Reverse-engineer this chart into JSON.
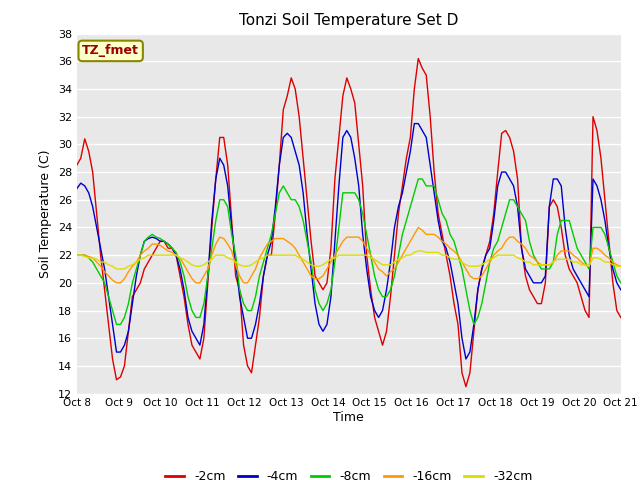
{
  "title": "Tonzi Soil Temperature Set D",
  "xlabel": "Time",
  "ylabel": "Soil Temperature (C)",
  "ylim": [
    12,
    38
  ],
  "yticks": [
    12,
    14,
    16,
    18,
    20,
    22,
    24,
    26,
    28,
    30,
    32,
    34,
    36,
    38
  ],
  "x_labels": [
    "Oct 8",
    "Oct 9",
    "Oct 10",
    "Oct 11",
    "Oct 12",
    "Oct 13",
    "Oct 14",
    "Oct 15",
    "Oct 16",
    "Oct 17",
    "Oct 18",
    "Oct 19",
    "Oct 20",
    "Oct 21"
  ],
  "legend_label": "TZ_fmet",
  "legend_box_color": "#ffffcc",
  "legend_box_edge": "#888800",
  "legend_text_color": "#990000",
  "series_labels": [
    "-2cm",
    "-4cm",
    "-8cm",
    "-16cm",
    "-32cm"
  ],
  "series_colors": [
    "#dd0000",
    "#0000cc",
    "#00cc00",
    "#ff9900",
    "#dddd00"
  ],
  "background_color": "#ffffff",
  "plot_bg_color": "#e8e8e8",
  "grid_color": "#ffffff",
  "series_2cm": [
    28.5,
    29.0,
    30.4,
    29.5,
    28.0,
    25.0,
    22.0,
    19.5,
    17.0,
    14.5,
    13.0,
    13.2,
    14.0,
    16.5,
    19.0,
    19.5,
    20.0,
    21.0,
    21.5,
    22.0,
    22.5,
    23.0,
    23.0,
    22.5,
    22.5,
    22.0,
    20.5,
    19.0,
    17.0,
    15.5,
    15.0,
    14.5,
    16.0,
    20.0,
    24.0,
    27.5,
    30.5,
    30.5,
    28.5,
    24.5,
    20.5,
    19.5,
    15.5,
    14.0,
    13.5,
    15.5,
    17.5,
    20.5,
    22.0,
    22.0,
    25.0,
    28.5,
    32.5,
    33.5,
    34.8,
    34.0,
    32.0,
    29.0,
    26.0,
    23.0,
    20.5,
    20.0,
    19.5,
    20.0,
    22.5,
    27.5,
    30.5,
    33.5,
    34.8,
    34.0,
    33.0,
    30.0,
    27.0,
    22.0,
    19.5,
    17.5,
    16.5,
    15.5,
    16.5,
    19.0,
    22.0,
    25.0,
    27.0,
    29.0,
    30.5,
    34.0,
    36.2,
    35.5,
    35.0,
    32.0,
    28.0,
    25.0,
    23.5,
    22.0,
    20.5,
    18.5,
    17.0,
    13.5,
    12.5,
    13.5,
    16.5,
    19.5,
    21.0,
    22.0,
    23.0,
    25.0,
    28.0,
    30.8,
    31.0,
    30.5,
    29.5,
    27.5,
    22.5,
    20.5,
    19.5,
    19.0,
    18.5,
    18.5,
    20.0,
    25.5,
    26.0,
    25.5,
    24.0,
    22.0,
    21.0,
    20.5,
    20.0,
    19.0,
    18.0,
    17.5,
    32.0,
    31.0,
    29.0,
    26.0,
    23.0,
    20.0,
    18.0,
    17.5
  ],
  "series_4cm": [
    26.8,
    27.2,
    27.0,
    26.5,
    25.5,
    24.0,
    22.5,
    21.0,
    19.0,
    17.0,
    15.0,
    15.0,
    15.5,
    16.5,
    18.5,
    20.5,
    22.0,
    23.0,
    23.2,
    23.3,
    23.2,
    23.0,
    23.0,
    22.8,
    22.5,
    22.0,
    21.0,
    19.5,
    17.5,
    16.5,
    16.0,
    15.5,
    17.0,
    20.5,
    24.5,
    27.5,
    29.0,
    28.5,
    27.0,
    24.0,
    21.5,
    19.0,
    17.5,
    16.0,
    16.0,
    17.0,
    18.5,
    20.5,
    22.0,
    23.0,
    25.5,
    28.5,
    30.5,
    30.8,
    30.5,
    29.5,
    28.5,
    26.5,
    23.5,
    21.0,
    18.5,
    17.0,
    16.5,
    17.0,
    19.0,
    23.0,
    27.0,
    30.5,
    31.0,
    30.5,
    29.0,
    27.0,
    23.5,
    21.0,
    19.0,
    18.0,
    17.5,
    18.0,
    19.5,
    21.5,
    24.0,
    25.5,
    26.5,
    28.0,
    29.5,
    31.5,
    31.5,
    31.0,
    30.5,
    28.5,
    26.5,
    24.5,
    23.0,
    22.5,
    21.5,
    20.0,
    18.5,
    16.0,
    14.5,
    15.0,
    17.0,
    19.5,
    21.0,
    22.0,
    22.5,
    24.5,
    27.0,
    28.0,
    28.0,
    27.5,
    27.0,
    25.5,
    22.5,
    21.0,
    20.5,
    20.0,
    20.0,
    20.0,
    20.5,
    25.5,
    27.5,
    27.5,
    27.0,
    24.0,
    22.0,
    21.0,
    20.5,
    20.0,
    19.5,
    19.0,
    27.5,
    27.0,
    26.0,
    24.5,
    22.5,
    21.0,
    20.0,
    19.5
  ],
  "series_8cm": [
    22.0,
    22.0,
    22.0,
    21.8,
    21.5,
    21.0,
    20.5,
    20.0,
    19.0,
    18.0,
    17.0,
    17.0,
    17.5,
    18.5,
    20.0,
    21.0,
    22.0,
    23.0,
    23.3,
    23.5,
    23.3,
    23.2,
    23.0,
    22.8,
    22.5,
    22.2,
    21.5,
    20.5,
    19.0,
    18.0,
    17.5,
    17.5,
    18.5,
    20.5,
    22.5,
    24.5,
    26.0,
    26.0,
    25.5,
    23.5,
    22.0,
    19.5,
    18.5,
    18.0,
    18.0,
    19.0,
    20.5,
    21.5,
    22.5,
    23.5,
    25.0,
    26.5,
    27.0,
    26.5,
    26.0,
    26.0,
    25.5,
    24.5,
    23.0,
    21.5,
    19.5,
    18.5,
    18.0,
    18.5,
    19.5,
    21.5,
    24.0,
    26.5,
    26.5,
    26.5,
    26.5,
    26.0,
    25.0,
    23.5,
    22.0,
    20.5,
    19.5,
    19.0,
    19.0,
    19.5,
    20.5,
    22.0,
    23.5,
    24.5,
    25.5,
    26.5,
    27.5,
    27.5,
    27.0,
    27.0,
    27.0,
    26.0,
    25.0,
    24.5,
    23.5,
    23.0,
    22.0,
    21.0,
    19.5,
    18.0,
    17.0,
    17.5,
    18.5,
    20.0,
    21.5,
    22.5,
    23.0,
    24.0,
    25.0,
    26.0,
    26.0,
    25.5,
    25.0,
    24.5,
    23.0,
    22.0,
    21.5,
    21.0,
    21.0,
    21.0,
    21.5,
    23.5,
    24.5,
    24.5,
    24.5,
    23.5,
    22.5,
    22.0,
    21.5,
    21.0,
    24.0,
    24.0,
    24.0,
    23.5,
    22.5,
    21.5,
    20.5,
    20.0
  ],
  "series_16cm": [
    22.0,
    22.0,
    22.0,
    21.9,
    21.8,
    21.5,
    21.2,
    20.8,
    20.5,
    20.2,
    20.0,
    20.0,
    20.3,
    20.8,
    21.2,
    21.5,
    22.0,
    22.3,
    22.5,
    22.8,
    22.8,
    22.7,
    22.5,
    22.3,
    22.2,
    22.0,
    21.8,
    21.3,
    20.8,
    20.3,
    20.0,
    20.0,
    20.5,
    21.0,
    22.0,
    22.8,
    23.3,
    23.2,
    22.8,
    22.3,
    21.3,
    20.5,
    20.0,
    20.0,
    20.5,
    21.0,
    21.8,
    22.3,
    22.8,
    23.0,
    23.2,
    23.2,
    23.2,
    23.0,
    22.8,
    22.5,
    22.0,
    21.5,
    21.0,
    20.5,
    20.3,
    20.3,
    20.5,
    21.0,
    21.5,
    22.0,
    22.5,
    23.0,
    23.3,
    23.3,
    23.3,
    23.3,
    23.0,
    22.5,
    22.0,
    21.5,
    21.0,
    20.8,
    20.5,
    20.8,
    21.0,
    21.5,
    22.0,
    22.5,
    23.0,
    23.5,
    24.0,
    23.8,
    23.5,
    23.5,
    23.5,
    23.3,
    23.0,
    22.8,
    22.5,
    22.3,
    22.0,
    21.5,
    21.0,
    20.5,
    20.3,
    20.3,
    20.5,
    21.0,
    21.5,
    22.0,
    22.3,
    22.5,
    23.0,
    23.3,
    23.3,
    23.0,
    22.8,
    22.5,
    22.0,
    21.8,
    21.5,
    21.3,
    21.3,
    21.3,
    21.5,
    22.0,
    22.3,
    22.3,
    22.3,
    22.0,
    21.8,
    21.5,
    21.3,
    21.2,
    22.5,
    22.5,
    22.3,
    22.0,
    21.8,
    21.5,
    21.3,
    21.2
  ],
  "series_32cm": [
    22.0,
    22.0,
    21.9,
    21.8,
    21.8,
    21.7,
    21.5,
    21.5,
    21.3,
    21.2,
    21.0,
    21.0,
    21.0,
    21.2,
    21.3,
    21.5,
    21.7,
    21.8,
    22.0,
    22.0,
    22.0,
    22.0,
    22.0,
    22.0,
    22.0,
    22.0,
    21.8,
    21.7,
    21.5,
    21.3,
    21.2,
    21.2,
    21.3,
    21.5,
    21.7,
    22.0,
    22.0,
    22.0,
    21.8,
    21.7,
    21.5,
    21.3,
    21.2,
    21.2,
    21.3,
    21.5,
    21.7,
    21.8,
    22.0,
    22.0,
    22.0,
    22.0,
    22.0,
    22.0,
    22.0,
    22.0,
    21.8,
    21.7,
    21.5,
    21.3,
    21.2,
    21.2,
    21.3,
    21.5,
    21.7,
    21.8,
    22.0,
    22.0,
    22.0,
    22.0,
    22.0,
    22.0,
    22.0,
    22.0,
    21.8,
    21.7,
    21.5,
    21.3,
    21.3,
    21.3,
    21.5,
    21.7,
    21.8,
    22.0,
    22.0,
    22.2,
    22.3,
    22.3,
    22.2,
    22.2,
    22.2,
    22.2,
    22.0,
    22.0,
    21.8,
    21.7,
    21.7,
    21.5,
    21.3,
    21.2,
    21.2,
    21.2,
    21.3,
    21.5,
    21.7,
    21.8,
    22.0,
    22.0,
    22.0,
    22.0,
    22.0,
    21.8,
    21.7,
    21.5,
    21.5,
    21.3,
    21.3,
    21.3,
    21.3,
    21.3,
    21.5,
    21.7,
    21.7,
    21.7,
    21.7,
    21.5,
    21.5,
    21.3,
    21.3,
    21.2,
    21.8,
    21.8,
    21.7,
    21.5,
    21.5,
    21.3,
    21.2,
    21.2
  ]
}
